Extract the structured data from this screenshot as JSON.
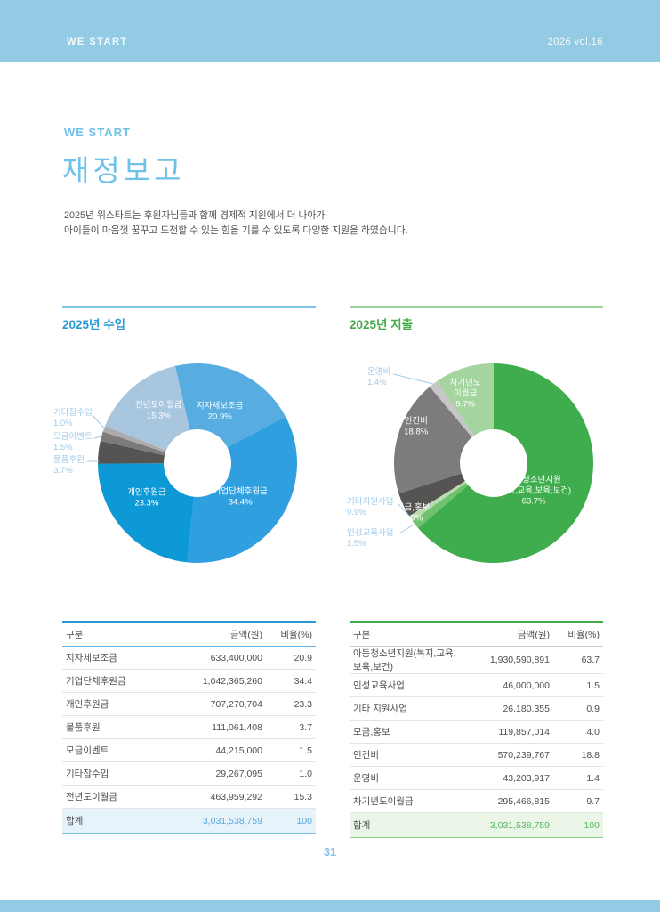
{
  "top_bar": {
    "brand": "WE START",
    "issue": "2026 vol.16",
    "band_color": "#93cbe4"
  },
  "title_block": {
    "eyebrow": "WE START",
    "title": "재정보고",
    "description_lines": [
      "2025년 위스타트는 후원자님들과 함께 경제적 지원에서 더 나아가",
      "아이들이 마음껏 꿈꾸고 도전할 수 있는 힘을 기를 수 있도록 다양한 지원을 하였습니다."
    ]
  },
  "income": {
    "section_title": "2025년 수입",
    "accent": "#2b9ad3",
    "rule_color": "#7cc3ea",
    "table": {
      "headers": [
        "구분",
        "금액(원)",
        "비율(%)"
      ],
      "rows": [
        [
          "지자체보조금",
          "633,400,000",
          "20.9"
        ],
        [
          "기업단체후원금",
          "1,042,365,260",
          "34.4"
        ],
        [
          "개인후원금",
          "707,270,704",
          "23.3"
        ],
        [
          "물품후원",
          "111,061,408",
          "3.7"
        ],
        [
          "모금이벤트",
          "44,215,000",
          "1.5"
        ],
        [
          "기타잡수입",
          "29,267,095",
          "1.0"
        ],
        [
          "전년도이월금",
          "463,959,292",
          "15.3"
        ]
      ],
      "total_row": [
        "합계",
        "3,031,538,759",
        "100"
      ],
      "head_rule": "#5fb6e8",
      "total_bg": "#e7f3fb",
      "total_border": "#74c0e8",
      "total_value_color": "#54aade"
    }
  },
  "expense": {
    "section_title": "2025년 지출",
    "accent": "#43ab4a",
    "rule_color": "#9ad29a",
    "table": {
      "headers": [
        "구분",
        "금액(원)",
        "비율(%)"
      ],
      "rows": [
        [
          "아동청소년지원(복지,교육,보육,보건)",
          "1,930,590,891",
          "63.7"
        ],
        [
          "인성교육사업",
          "46,000,000",
          "1.5"
        ],
        [
          "기타 지원사업",
          "26,180,355",
          "0.9"
        ],
        [
          "모금,홍보",
          "119,857,014",
          "4.0"
        ],
        [
          "인건비",
          "570,239,767",
          "18.8"
        ],
        [
          "운영비",
          "43,203,917",
          "1.4"
        ],
        [
          "차기년도이월금",
          "295,466,815",
          "9.7"
        ]
      ],
      "total_row": [
        "합계",
        "3,031,538,759",
        "100"
      ],
      "head_rule": "#cfcfcf",
      "total_bg": "#ebf6e9",
      "total_border": "#8ccb8c",
      "total_value_color": "#57b861"
    }
  },
  "chart_data": [
    {
      "type": "pie",
      "title": "2025년 수입",
      "donut": true,
      "start_angle": -13,
      "unit": "%",
      "outside_label_color": "#9fcbe9",
      "slices": [
        {
          "label": "지자체보조금",
          "value": 20.9,
          "pct_label": "20.9%",
          "color": "#58ade0",
          "label_pos": "inside",
          "label_lines": [
            "지자체보조금",
            "20.9%"
          ]
        },
        {
          "label": "기업단체후원금",
          "value": 34.4,
          "pct_label": "34.4%",
          "color": "#2f9fdf",
          "label_pos": "inside",
          "label_lines": [
            "기업단체후원금",
            "34.4%"
          ]
        },
        {
          "label": "개인후원금",
          "value": 23.3,
          "pct_label": "23.3%",
          "color": "#0d99d6",
          "label_pos": "inside",
          "label_lines": [
            "개인후원금",
            "23.3%"
          ]
        },
        {
          "label": "물품후원",
          "value": 3.7,
          "pct_label": "3.7%",
          "color": "#565353",
          "label_pos": "outside",
          "label_lines": [
            "물품후원",
            "3.7%"
          ]
        },
        {
          "label": "모금이벤트",
          "value": 1.5,
          "pct_label": "1.5%",
          "color": "#7c7a7a",
          "label_pos": "outside",
          "label_lines": [
            "모금이벤트",
            "1.5%"
          ]
        },
        {
          "label": "기타잡수입",
          "value": 1.0,
          "pct_label": "1.0%",
          "color": "#acacac",
          "label_pos": "outside",
          "label_lines": [
            "기타잡수입",
            "1.0%"
          ]
        },
        {
          "label": "전년도이월금",
          "value": 15.3,
          "pct_label": "15.3%",
          "color": "#a9c6df",
          "label_pos": "inside",
          "label_lines": [
            "전년도이월금",
            "15.3%"
          ]
        }
      ]
    },
    {
      "type": "pie",
      "title": "2025년 지출",
      "donut": true,
      "start_angle": 0,
      "unit": "%",
      "outside_label_color": "#9fcbe9",
      "slices": [
        {
          "label": "아동청소년지원(복지,교육,보육,보건)",
          "value": 63.7,
          "pct_label": "63.7%",
          "color": "#3fad4d",
          "label_pos": "inside",
          "label_lines": [
            "아동청소년지원",
            "(복지,교육,보육,보건)",
            "63.7%"
          ]
        },
        {
          "label": "인성교육사업",
          "value": 1.5,
          "pct_label": "1.5%",
          "color": "#6fc16b",
          "label_pos": "outside",
          "label_lines": [
            "인성교육사업",
            "1.5%"
          ]
        },
        {
          "label": "기타지원사업",
          "value": 0.9,
          "pct_label": "0.9%",
          "color": "#b9ddb0",
          "label_pos": "outside",
          "label_lines": [
            "기타지원사업",
            "0.9%"
          ]
        },
        {
          "label": "모금,홍보",
          "value": 4.0,
          "pct_label": "4.0%",
          "color": "#565353",
          "label_pos": "inside",
          "label_lines": [
            "모금,홍보",
            "4.0%"
          ]
        },
        {
          "label": "인건비",
          "value": 18.8,
          "pct_label": "18.8%",
          "color": "#7d7b7b",
          "label_pos": "inside",
          "label_lines": [
            "인건비",
            "18.8%"
          ]
        },
        {
          "label": "운영비",
          "value": 1.4,
          "pct_label": "1.4%",
          "color": "#c6c6c6",
          "label_pos": "outside",
          "label_lines": [
            "운영비",
            "1.4%"
          ]
        },
        {
          "label": "차기년도이월금",
          "value": 9.7,
          "pct_label": "9.7%",
          "color": "#a4d59e",
          "label_pos": "inside",
          "label_lines": [
            "차기년도",
            "이월금",
            "9.7%"
          ]
        }
      ]
    }
  ],
  "footer": {
    "page_number": "31"
  }
}
